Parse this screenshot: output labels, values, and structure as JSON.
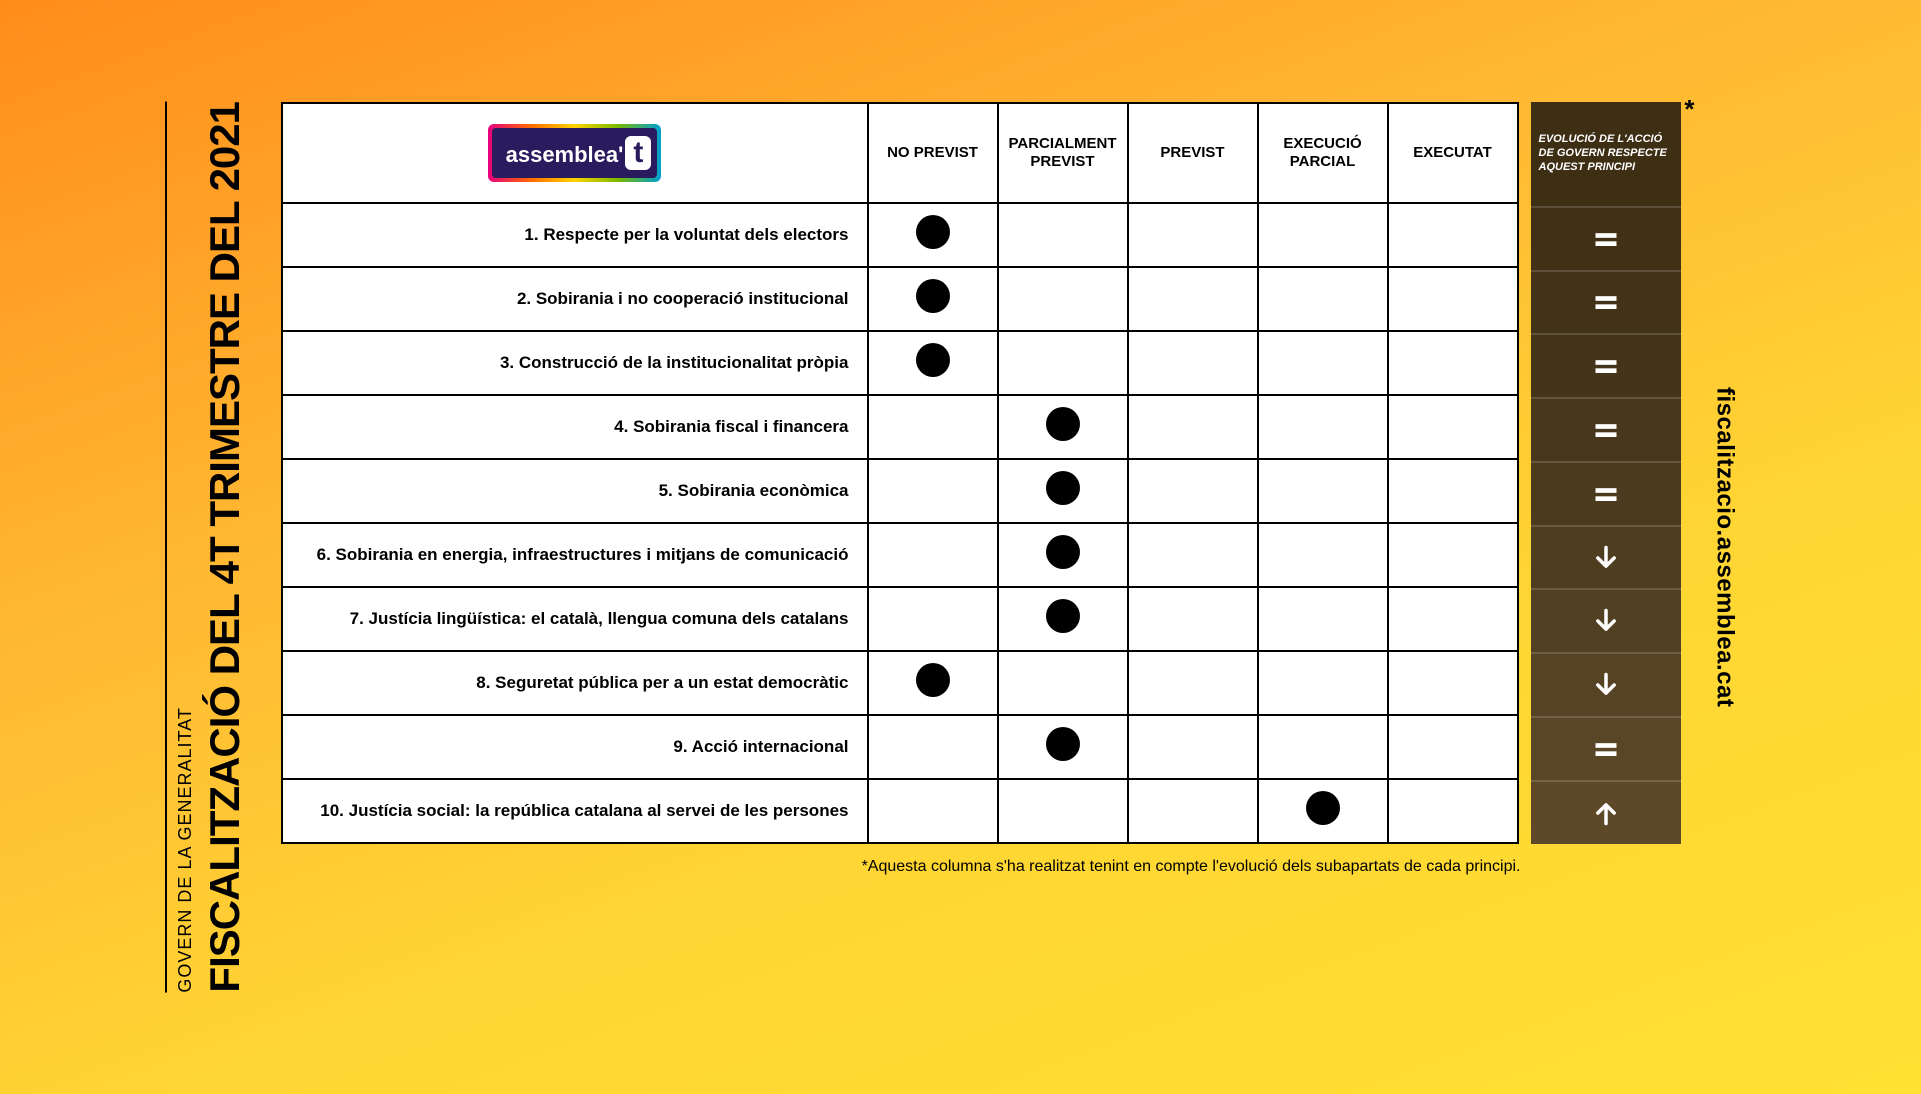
{
  "title": "FISCALITZACIÓ DEL 4T TRIMESTRE DEL 2021",
  "subtitle": "GOVERN DE LA GENERALITAT",
  "logo_text": "assemblea",
  "logo_suffix": "t",
  "url": "fiscalitzacio.assemblea.cat",
  "footnote": "*Aquesta columna s'ha realitzat tenint en compte l'evolució dels subapartats de cada principi.",
  "columns": [
    "NO PREVIST",
    "PARCIALMENT PREVIST",
    "PREVIST",
    "EXECUCIÓ PARCIAL",
    "EXECUTAT"
  ],
  "evolution_header": "EVOLUCIÓ DE L'ACCIÓ DE GOVERN RESPECTE AQUEST PRINCIPI",
  "evolution_bg_colors": [
    "#3d2e14",
    "#3f3016",
    "#423218",
    "#44341a",
    "#48371c",
    "#4b3a1e",
    "#4f3d20",
    "#524022",
    "#564324",
    "#594626",
    "#5d4928"
  ],
  "rows": [
    {
      "label": "1. Respecte per la voluntat dels electors",
      "mark": 0,
      "evo": "equal"
    },
    {
      "label": "2. Sobirania i no cooperació institucional",
      "mark": 0,
      "evo": "equal"
    },
    {
      "label": "3. Construcció de la institucionalitat pròpia",
      "mark": 0,
      "evo": "equal"
    },
    {
      "label": "4. Sobirania fiscal i financera",
      "mark": 1,
      "evo": "equal"
    },
    {
      "label": "5. Sobirania econòmica",
      "mark": 1,
      "evo": "equal"
    },
    {
      "label": "6. Sobirania en energia, infraestructures i mitjans de comunicació",
      "mark": 1,
      "evo": "down"
    },
    {
      "label": "7. Justícia lingüística: el català, llengua comuna dels catalans",
      "mark": 1,
      "evo": "down"
    },
    {
      "label": "8. Seguretat pública per a un estat democràtic",
      "mark": 0,
      "evo": "down"
    },
    {
      "label": "9. Acció internacional",
      "mark": 1,
      "evo": "equal"
    },
    {
      "label": "10. Justícia social: la república catalana al servei de les persones",
      "mark": 3,
      "evo": "up"
    }
  ],
  "colors": {
    "dot": "#000000",
    "border": "#000000",
    "evo_text": "#ffffff"
  }
}
